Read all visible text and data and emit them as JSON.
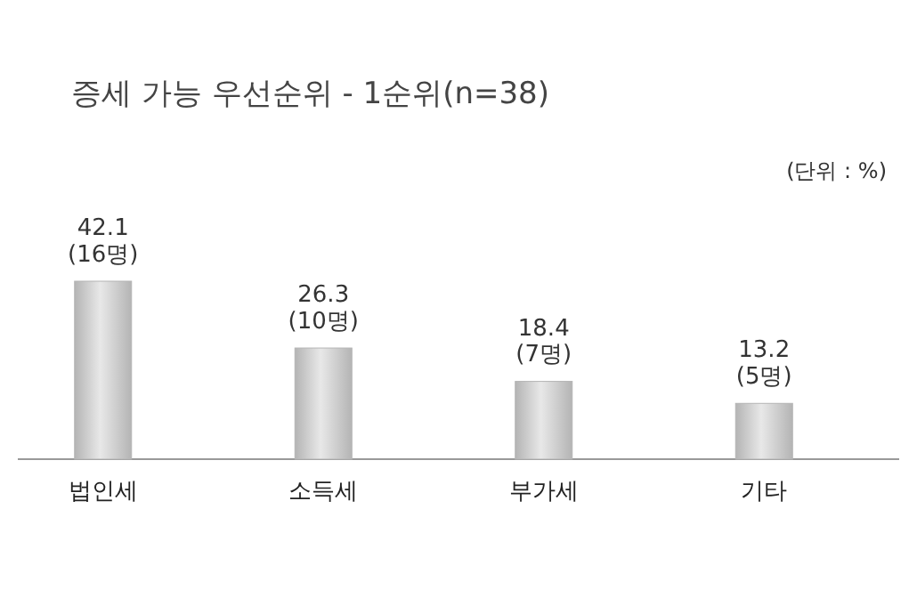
{
  "chart_data": {
    "type": "bar",
    "title": "증세 가능 우선순위  -  1순위(n=38)",
    "annotations": [
      "(단위 : %)"
    ],
    "categories": [
      "법인세",
      "소득세",
      "부가세",
      "기타"
    ],
    "values": [
      42.1,
      26.3,
      18.4,
      13.2
    ],
    "value_labels": [
      "42.1\n(16명)",
      "26.3\n(10명)",
      "18.4\n(7명)",
      "13.2\n(5명)"
    ],
    "color": "#b4b4b4"
  }
}
